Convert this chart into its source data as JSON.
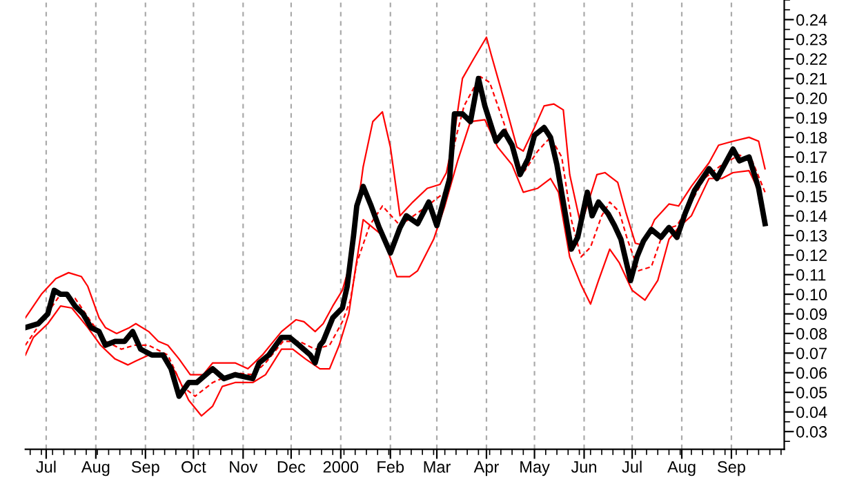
{
  "chart_data": {
    "type": "line",
    "xlim": [
      "1999-06-18",
      "2000-10-04"
    ],
    "ylim": [
      0.021,
      0.25
    ],
    "xticks": [
      {
        "value": "1999-07-01",
        "label": "Jul"
      },
      {
        "value": "1999-08-01",
        "label": "Aug"
      },
      {
        "value": "1999-09-01",
        "label": "Sep"
      },
      {
        "value": "1999-10-01",
        "label": "Oct"
      },
      {
        "value": "1999-11-01",
        "label": "Nov"
      },
      {
        "value": "1999-12-01",
        "label": "Dec"
      },
      {
        "value": "2000-01-01",
        "label": "2000"
      },
      {
        "value": "2000-02-01",
        "label": "Feb"
      },
      {
        "value": "2000-03-01",
        "label": "Mar"
      },
      {
        "value": "2000-04-01",
        "label": "Apr"
      },
      {
        "value": "2000-05-01",
        "label": "May"
      },
      {
        "value": "2000-06-01",
        "label": "Jun"
      },
      {
        "value": "2000-07-01",
        "label": "Jul"
      },
      {
        "value": "2000-08-01",
        "label": "Aug"
      },
      {
        "value": "2000-09-01",
        "label": "Sep"
      }
    ],
    "yticks": [
      0.03,
      0.04,
      0.05,
      0.06,
      0.07,
      0.08,
      0.09,
      {
        "value": 0.1,
        "label": "0.10"
      },
      0.11,
      0.12,
      0.13,
      0.14,
      0.15,
      0.16,
      0.17,
      0.18,
      0.19,
      {
        "value": 0.2,
        "label": "0.20"
      },
      0.21,
      0.22,
      0.23,
      0.24
    ],
    "grid": "x",
    "legend": false,
    "series": [
      {
        "color": "#000000",
        "line_style": "solid",
        "x": [
          "1999-06-18",
          "1999-06-26",
          "1999-07-02",
          "1999-07-06",
          "1999-07-10",
          "1999-07-14",
          "1999-07-19",
          "1999-07-24",
          "1999-07-29",
          "1999-08-03",
          "1999-08-07",
          "1999-08-13",
          "1999-08-19",
          "1999-08-24",
          "1999-08-29",
          "1999-09-05",
          "1999-09-12",
          "1999-09-17",
          "1999-09-22",
          "1999-09-28",
          "1999-10-03",
          "1999-10-13",
          "1999-10-20",
          "1999-10-27",
          "1999-11-07",
          "1999-11-11",
          "1999-11-17",
          "1999-11-25",
          "1999-11-30",
          "1999-12-06",
          "1999-12-13",
          "1999-12-16",
          "1999-12-19",
          "1999-12-21",
          "1999-12-27",
          "2000-01-02",
          "2000-01-05",
          "2000-01-09",
          "2000-01-11",
          "2000-01-15",
          "2000-01-20",
          "2000-01-25",
          "2000-02-01",
          "2000-02-07",
          "2000-02-11",
          "2000-02-18",
          "2000-02-25",
          "2000-03-01",
          "2000-03-05",
          "2000-03-09",
          "2000-03-12",
          "2000-03-17",
          "2000-03-22",
          "2000-03-27",
          "2000-03-31",
          "2000-04-07",
          "2000-04-12",
          "2000-04-17",
          "2000-04-22",
          "2000-04-27",
          "2000-05-01",
          "2000-05-07",
          "2000-05-11",
          "2000-05-15",
          "2000-05-24",
          "2000-05-28",
          "2000-06-03",
          "2000-06-06",
          "2000-06-10",
          "2000-06-16",
          "2000-06-20",
          "2000-06-24",
          "2000-06-30",
          "2000-07-04",
          "2000-07-08",
          "2000-07-13",
          "2000-07-19",
          "2000-07-24",
          "2000-07-29",
          "2000-08-03",
          "2000-08-09",
          "2000-08-18",
          "2000-08-23",
          "2000-09-02",
          "2000-09-06",
          "2000-09-12",
          "2000-09-18",
          "2000-09-22"
        ],
        "values": [
          0.083,
          0.085,
          0.09,
          0.102,
          0.1,
          0.1,
          0.094,
          0.09,
          0.083,
          0.081,
          0.074,
          0.076,
          0.076,
          0.081,
          0.072,
          0.069,
          0.069,
          0.062,
          0.048,
          0.055,
          0.055,
          0.062,
          0.057,
          0.059,
          0.057,
          0.065,
          0.069,
          0.078,
          0.078,
          0.074,
          0.069,
          0.065,
          0.074,
          0.076,
          0.088,
          0.093,
          0.104,
          0.13,
          0.145,
          0.155,
          0.145,
          0.134,
          0.121,
          0.134,
          0.14,
          0.136,
          0.147,
          0.135,
          0.147,
          0.159,
          0.192,
          0.192,
          0.188,
          0.21,
          0.196,
          0.178,
          0.183,
          0.176,
          0.161,
          0.169,
          0.181,
          0.185,
          0.18,
          0.166,
          0.123,
          0.129,
          0.152,
          0.14,
          0.147,
          0.141,
          0.135,
          0.128,
          0.107,
          0.119,
          0.127,
          0.133,
          0.129,
          0.134,
          0.129,
          0.141,
          0.153,
          0.164,
          0.159,
          0.174,
          0.168,
          0.17,
          0.154,
          0.136
        ]
      },
      {
        "color": "#ff0000",
        "line_style": "dashed",
        "x": [
          "1999-06-18",
          "1999-06-28",
          "1999-07-10",
          "1999-07-19",
          "1999-07-29",
          "1999-08-07",
          "1999-08-17",
          "1999-08-25",
          "1999-09-03",
          "1999-09-15",
          "1999-09-24",
          "1999-10-02",
          "1999-10-13",
          "1999-10-27",
          "1999-11-07",
          "1999-11-15",
          "1999-11-26",
          "1999-12-06",
          "1999-12-16",
          "1999-12-25",
          "2000-01-02",
          "2000-01-07",
          "2000-01-11",
          "2000-01-19",
          "2000-01-27",
          "2000-02-07",
          "2000-02-24",
          "2000-03-06",
          "2000-03-13",
          "2000-03-18",
          "2000-03-28",
          "2000-04-03",
          "2000-04-12",
          "2000-04-20",
          "2000-04-25",
          "2000-05-03",
          "2000-05-11",
          "2000-05-18",
          "2000-05-24",
          "2000-05-30",
          "2000-06-05",
          "2000-06-12",
          "2000-06-17",
          "2000-06-23",
          "2000-06-28",
          "2000-07-05",
          "2000-07-13",
          "2000-07-21",
          "2000-07-29",
          "2000-08-07",
          "2000-08-15",
          "2000-08-26",
          "2000-09-06",
          "2000-09-14",
          "2000-09-22"
        ],
        "values": [
          0.074,
          0.086,
          0.1,
          0.098,
          0.086,
          0.076,
          0.072,
          0.074,
          0.074,
          0.069,
          0.053,
          0.048,
          0.055,
          0.06,
          0.059,
          0.065,
          0.076,
          0.076,
          0.072,
          0.074,
          0.086,
          0.097,
          0.116,
          0.135,
          0.145,
          0.135,
          0.145,
          0.152,
          0.18,
          0.196,
          0.211,
          0.208,
          0.187,
          0.166,
          0.163,
          0.173,
          0.18,
          0.17,
          0.138,
          0.119,
          0.124,
          0.14,
          0.147,
          0.142,
          0.128,
          0.112,
          0.114,
          0.133,
          0.135,
          0.147,
          0.159,
          0.166,
          0.171,
          0.168,
          0.152
        ]
      },
      {
        "color": "#ff0000",
        "line_style": "solid",
        "x": [
          "1999-06-18",
          "1999-06-28",
          "1999-07-07",
          "1999-07-15",
          "1999-07-23",
          "1999-07-27",
          "1999-08-03",
          "1999-08-07",
          "1999-08-14",
          "1999-08-22",
          "1999-08-26",
          "1999-09-03",
          "1999-09-09",
          "1999-09-15",
          "1999-09-22",
          "1999-09-29",
          "1999-10-07",
          "1999-10-13",
          "1999-10-27",
          "1999-11-04",
          "1999-11-13",
          "1999-11-25",
          "1999-12-04",
          "1999-12-09",
          "1999-12-16",
          "1999-12-21",
          "1999-12-27",
          "2000-01-02",
          "2000-01-07",
          "2000-01-10",
          "2000-01-15",
          "2000-01-21",
          "2000-01-27",
          "2000-02-01",
          "2000-02-07",
          "2000-02-15",
          "2000-02-24",
          "2000-03-03",
          "2000-03-07",
          "2000-03-12",
          "2000-03-17",
          "2000-03-24",
          "2000-04-01",
          "2000-04-04",
          "2000-04-12",
          "2000-04-20",
          "2000-04-24",
          "2000-05-01",
          "2000-05-07",
          "2000-05-13",
          "2000-05-19",
          "2000-05-23",
          "2000-05-30",
          "2000-06-09",
          "2000-06-14",
          "2000-06-22",
          "2000-06-27",
          "2000-07-03",
          "2000-07-08",
          "2000-07-15",
          "2000-07-24",
          "2000-07-30",
          "2000-08-07",
          "2000-08-18",
          "2000-08-24",
          "2000-09-02",
          "2000-09-12",
          "2000-09-18",
          "2000-09-22"
        ],
        "values": [
          0.088,
          0.1,
          0.108,
          0.111,
          0.109,
          0.104,
          0.088,
          0.083,
          0.08,
          0.083,
          0.085,
          0.081,
          0.076,
          0.074,
          0.067,
          0.059,
          0.059,
          0.065,
          0.065,
          0.062,
          0.069,
          0.081,
          0.087,
          0.086,
          0.081,
          0.085,
          0.094,
          0.102,
          0.116,
          0.135,
          0.165,
          0.188,
          0.193,
          0.175,
          0.14,
          0.147,
          0.154,
          0.156,
          0.162,
          0.182,
          0.21,
          0.22,
          0.231,
          0.222,
          0.199,
          0.175,
          0.173,
          0.185,
          0.196,
          0.197,
          0.194,
          0.161,
          0.135,
          0.161,
          0.162,
          0.157,
          0.142,
          0.126,
          0.125,
          0.138,
          0.146,
          0.145,
          0.155,
          0.167,
          0.176,
          0.178,
          0.18,
          0.178,
          0.164
        ]
      },
      {
        "color": "#ff0000",
        "line_style": "solid",
        "x": [
          "1999-06-18",
          "1999-06-23",
          "1999-07-02",
          "1999-07-10",
          "1999-07-17",
          "1999-07-27",
          "1999-08-04",
          "1999-08-13",
          "1999-08-21",
          "1999-08-26",
          "1999-09-03",
          "1999-09-12",
          "1999-09-20",
          "1999-09-28",
          "1999-10-06",
          "1999-10-13",
          "1999-10-19",
          "1999-10-27",
          "1999-11-07",
          "1999-11-15",
          "1999-11-25",
          "1999-12-02",
          "1999-12-10",
          "1999-12-19",
          "1999-12-25",
          "1999-12-31",
          "2000-01-06",
          "2000-01-10",
          "2000-01-15",
          "2000-01-27",
          "2000-02-05",
          "2000-02-13",
          "2000-02-18",
          "2000-02-28",
          "2000-03-06",
          "2000-03-14",
          "2000-03-22",
          "2000-03-31",
          "2000-04-08",
          "2000-04-17",
          "2000-04-24",
          "2000-05-03",
          "2000-05-11",
          "2000-05-16",
          "2000-05-23",
          "2000-05-30",
          "2000-06-05",
          "2000-06-10",
          "2000-06-17",
          "2000-06-23",
          "2000-07-01",
          "2000-07-09",
          "2000-07-17",
          "2000-07-24",
          "2000-07-30",
          "2000-08-07",
          "2000-08-18",
          "2000-08-26",
          "2000-09-02",
          "2000-09-12",
          "2000-09-18",
          "2000-09-22"
        ],
        "values": [
          0.069,
          0.078,
          0.085,
          0.094,
          0.093,
          0.083,
          0.074,
          0.067,
          0.064,
          0.066,
          0.069,
          0.069,
          0.06,
          0.046,
          0.038,
          0.043,
          0.053,
          0.055,
          0.055,
          0.059,
          0.072,
          0.072,
          0.067,
          0.062,
          0.062,
          0.074,
          0.09,
          0.112,
          0.138,
          0.13,
          0.109,
          0.109,
          0.112,
          0.128,
          0.145,
          0.168,
          0.188,
          0.189,
          0.175,
          0.166,
          0.152,
          0.154,
          0.159,
          0.152,
          0.119,
          0.105,
          0.095,
          0.107,
          0.123,
          0.116,
          0.102,
          0.097,
          0.107,
          0.128,
          0.134,
          0.14,
          0.159,
          0.159,
          0.162,
          0.163,
          0.153,
          0.136
        ]
      }
    ]
  }
}
